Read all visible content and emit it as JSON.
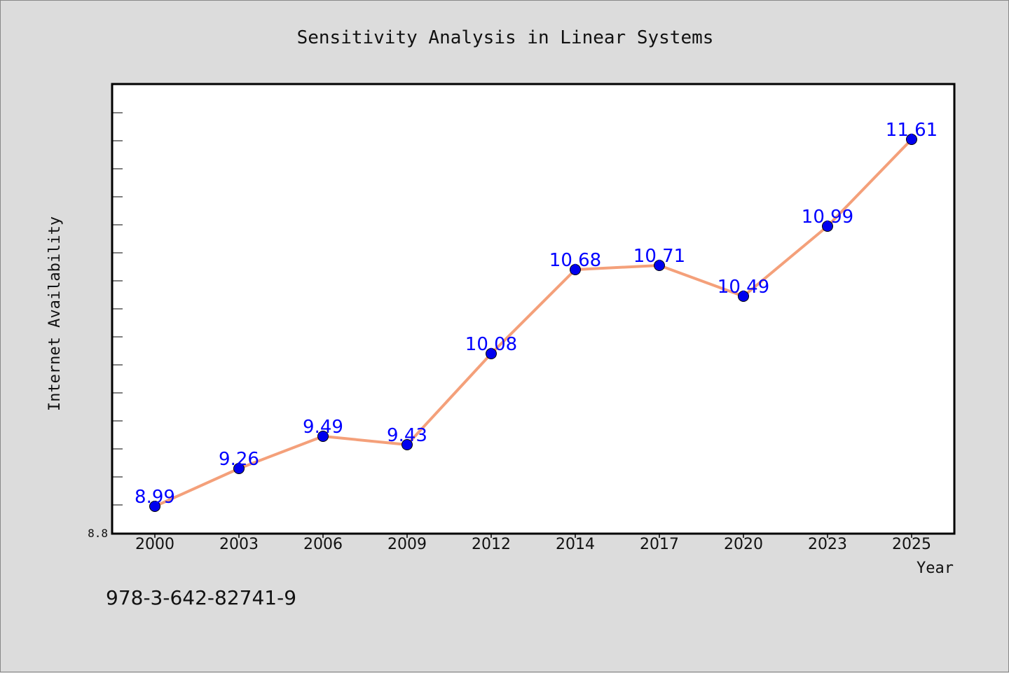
{
  "page": {
    "isbn": "978-3-642-82741-9"
  },
  "colors": {
    "background": "#dcdcdc",
    "plot_background": "#ffffff",
    "line": "#f4a07a",
    "marker": "#0000ee",
    "data_label": "#0000ff"
  },
  "chart_data": {
    "type": "line",
    "title": "Sensitivity Analysis in Linear Systems",
    "xlabel": "Year",
    "ylabel": "Internet Availability",
    "categories": [
      "2000",
      "2003",
      "2006",
      "2009",
      "2012",
      "2014",
      "2017",
      "2020",
      "2023",
      "2025"
    ],
    "series": [
      {
        "values": [
          8.99,
          9.26,
          9.49,
          9.43,
          10.08,
          10.68,
          10.71,
          10.49,
          10.99,
          11.61
        ]
      }
    ],
    "data_labels": [
      "8.99",
      "9.26",
      "9.49",
      "9.43",
      "10.08",
      "10.68",
      "10.71",
      "10.49",
      "10.99",
      "11.61"
    ],
    "ylim": [
      8.8,
      12.0
    ],
    "ytick_labels": [
      "8.8"
    ],
    "grid": false,
    "legend": "none"
  }
}
